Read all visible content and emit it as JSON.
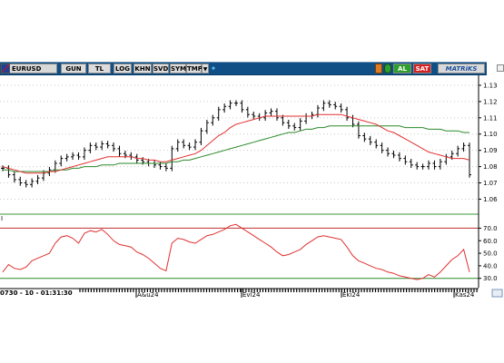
{
  "toolbar": {
    "symbol": "EURUSD",
    "buttons": [
      "GUN",
      "TL",
      "LOG",
      "KHN",
      "SVD",
      "SYM",
      "TMP"
    ],
    "buy": "AL",
    "sell": "SAT",
    "brand": "MATRiKS"
  },
  "statusbar": {
    "cursor_text": "0730 - 10 - 01:31:30"
  },
  "colors": {
    "toolbar_bg": "#0f4f86",
    "ma_short": "#e03030",
    "ma_long": "#2a8a2a",
    "bars": "#000000",
    "rsi": "#e03030",
    "rsi_overbought": "#c03030",
    "rsi_oversold": "#2a8a2a"
  },
  "chart_data": [
    {
      "type": "line",
      "subtype": "ohlc_bars",
      "title": "",
      "x_tick_labels": [
        "A&u24",
        "Evl24",
        "Eki24",
        "Kas24"
      ],
      "yticks": [
        1.06,
        1.07,
        1.08,
        1.09,
        1.1,
        1.11,
        1.12,
        1.13
      ],
      "ylim": [
        1.053,
        1.135
      ],
      "close": [
        1.079,
        1.075,
        1.072,
        1.07,
        1.069,
        1.071,
        1.073,
        1.076,
        1.078,
        1.082,
        1.085,
        1.086,
        1.087,
        1.086,
        1.09,
        1.093,
        1.092,
        1.094,
        1.093,
        1.091,
        1.088,
        1.087,
        1.086,
        1.084,
        1.083,
        1.082,
        1.081,
        1.08,
        1.079,
        1.091,
        1.095,
        1.093,
        1.092,
        1.095,
        1.102,
        1.107,
        1.11,
        1.115,
        1.117,
        1.119,
        1.119,
        1.115,
        1.112,
        1.111,
        1.11,
        1.113,
        1.114,
        1.11,
        1.107,
        1.105,
        1.104,
        1.108,
        1.111,
        1.112,
        1.116,
        1.119,
        1.118,
        1.117,
        1.115,
        1.11,
        1.106,
        1.099,
        1.097,
        1.095,
        1.093,
        1.09,
        1.088,
        1.087,
        1.085,
        1.083,
        1.081,
        1.08,
        1.08,
        1.082,
        1.08,
        1.083,
        1.086,
        1.088,
        1.091,
        1.093,
        1.075
      ],
      "series": [
        {
          "name": "",
          "role": "ma_short",
          "values": [
            1.08,
            1.079,
            1.078,
            1.077,
            1.076,
            1.076,
            1.076,
            1.076,
            1.077,
            1.077,
            1.078,
            1.079,
            1.08,
            1.081,
            1.082,
            1.083,
            1.084,
            1.085,
            1.086,
            1.086,
            1.086,
            1.086,
            1.086,
            1.085,
            1.085,
            1.084,
            1.084,
            1.083,
            1.083,
            1.084,
            1.085,
            1.086,
            1.087,
            1.088,
            1.09,
            1.093,
            1.096,
            1.099,
            1.101,
            1.104,
            1.106,
            1.107,
            1.108,
            1.109,
            1.11,
            1.111,
            1.111,
            1.111,
            1.111,
            1.111,
            1.111,
            1.111,
            1.111,
            1.111,
            1.112,
            1.112,
            1.112,
            1.112,
            1.112,
            1.111,
            1.11,
            1.109,
            1.108,
            1.107,
            1.106,
            1.104,
            1.102,
            1.101,
            1.099,
            1.097,
            1.095,
            1.093,
            1.091,
            1.089,
            1.088,
            1.087,
            1.086,
            1.085,
            1.085,
            1.085,
            1.084
          ]
        },
        {
          "name": "",
          "role": "ma_long",
          "values": [
            1.078,
            1.078,
            1.077,
            1.077,
            1.077,
            1.077,
            1.077,
            1.077,
            1.077,
            1.078,
            1.078,
            1.078,
            1.079,
            1.079,
            1.08,
            1.08,
            1.08,
            1.081,
            1.081,
            1.081,
            1.082,
            1.082,
            1.082,
            1.082,
            1.082,
            1.082,
            1.082,
            1.082,
            1.082,
            1.083,
            1.083,
            1.084,
            1.084,
            1.085,
            1.086,
            1.087,
            1.088,
            1.089,
            1.09,
            1.091,
            1.092,
            1.093,
            1.094,
            1.095,
            1.096,
            1.097,
            1.098,
            1.099,
            1.1,
            1.101,
            1.101,
            1.102,
            1.103,
            1.103,
            1.104,
            1.104,
            1.105,
            1.105,
            1.105,
            1.105,
            1.105,
            1.105,
            1.105,
            1.105,
            1.105,
            1.105,
            1.105,
            1.105,
            1.105,
            1.104,
            1.104,
            1.104,
            1.104,
            1.103,
            1.103,
            1.103,
            1.102,
            1.102,
            1.102,
            1.101,
            1.101
          ]
        }
      ]
    },
    {
      "type": "line",
      "title": "",
      "yticks": [
        30,
        40,
        50,
        60,
        70
      ],
      "ylim": [
        24,
        79
      ],
      "reference_lines": [
        70,
        30
      ],
      "series": [
        {
          "name": "",
          "values": [
            35,
            41,
            38,
            37,
            39,
            44,
            46,
            48,
            50,
            58,
            63,
            64,
            62,
            58,
            66,
            68,
            67,
            69,
            65,
            60,
            57,
            56,
            55,
            51,
            49,
            46,
            42,
            38,
            36,
            58,
            62,
            61,
            59,
            58,
            61,
            64,
            65,
            67,
            69,
            72,
            73,
            70,
            67,
            64,
            61,
            58,
            55,
            51,
            48,
            49,
            51,
            53,
            57,
            60,
            63,
            64,
            63,
            62,
            61,
            55,
            48,
            44,
            42,
            40,
            38,
            37,
            35,
            34,
            32,
            31,
            30,
            29,
            30,
            33,
            31,
            35,
            40,
            45,
            48,
            53,
            35
          ]
        }
      ]
    }
  ]
}
